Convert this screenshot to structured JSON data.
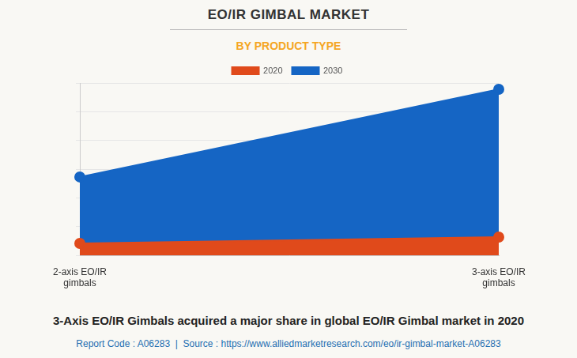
{
  "chart_data": {
    "type": "area",
    "title": "EO/IR GIMBAL MARKET",
    "subtitle": "BY PRODUCT TYPE",
    "categories": [
      "2-axis EO/IR gimbals",
      "3-axis EO/IR gimbals"
    ],
    "series": [
      {
        "name": "2020",
        "color": "#e04a1b",
        "values": [
          42,
          64
        ]
      },
      {
        "name": "2030",
        "color": "#1565c4",
        "values": [
          273,
          578
        ]
      }
    ],
    "ylim": [
      0,
      600
    ],
    "yticks": [
      0,
      100,
      200,
      300,
      400,
      500,
      600
    ],
    "grid": true,
    "legend": "top",
    "tick_labels": "x",
    "marker": "circle",
    "caption": "3-Axis EO/IR Gimbals acquired a major share in global EO/IR Gimbal market in 2020",
    "source": "Report Code : A06283  |  Source : https://www.alliedmarketresearch.com/eo/ir-gimbal-market-A06283"
  }
}
